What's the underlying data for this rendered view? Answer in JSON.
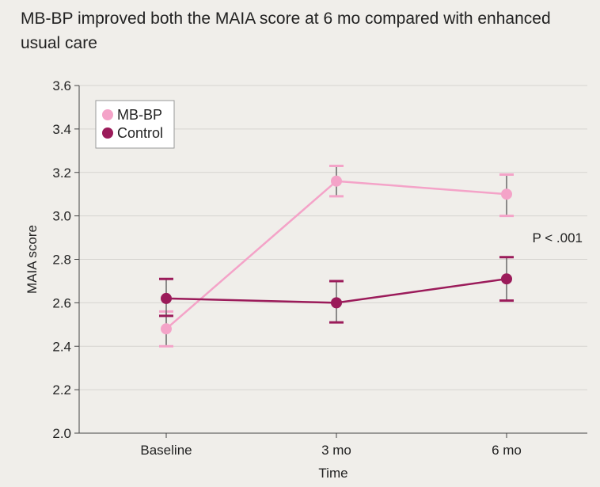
{
  "chart_data": {
    "type": "line",
    "title": "MB-BP improved both the MAIA score at 6 mo compared with enhanced usual care",
    "xlabel": "Time",
    "ylabel": "MAIA score",
    "categories": [
      "Baseline",
      "3 mo",
      "6 mo"
    ],
    "ylim": [
      2.0,
      3.6
    ],
    "yticks": [
      "2.0",
      "2.2",
      "2.4",
      "2.6",
      "2.8",
      "3.0",
      "3.2",
      "3.4",
      "3.6"
    ],
    "grid": true,
    "legend_position": "top-left",
    "annotation": "P < .001",
    "series": [
      {
        "name": "MB-BP",
        "color": "#f4a3c8",
        "values": [
          2.48,
          3.16,
          3.1
        ],
        "lower": [
          2.4,
          3.09,
          3.0
        ],
        "upper": [
          2.56,
          3.23,
          3.19
        ]
      },
      {
        "name": "Control",
        "color": "#9b1b5a",
        "values": [
          2.62,
          2.6,
          2.71
        ],
        "lower": [
          2.54,
          2.51,
          2.61
        ],
        "upper": [
          2.71,
          2.7,
          2.81
        ]
      }
    ]
  }
}
